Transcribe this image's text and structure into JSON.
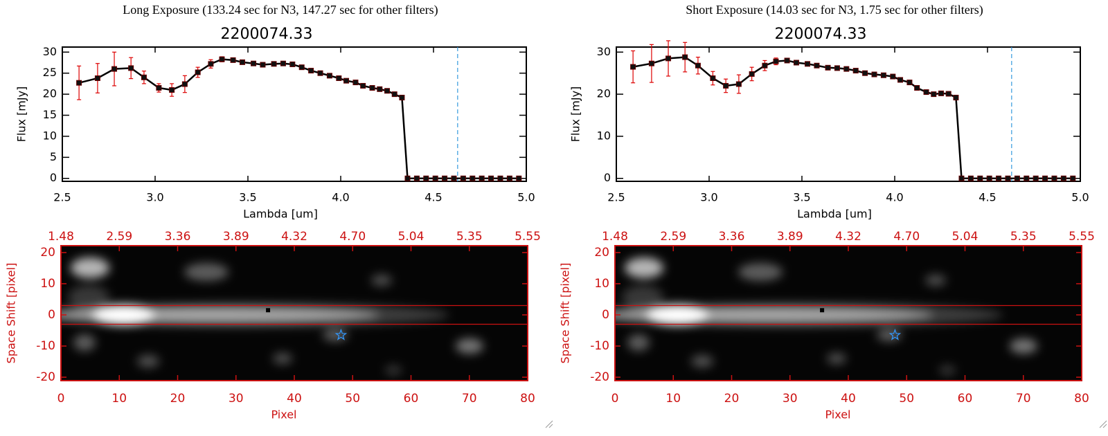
{
  "chart_data": [
    {
      "type": "line",
      "title": "Long Exposure (133.24 sec for N3, 147.27 sec for other filters)",
      "subtitle": "2200074.33",
      "xlabel": "Lambda [um]",
      "ylabel": "Flux [mJy]",
      "xlim": [
        2.5,
        5.0
      ],
      "ylim": [
        -0.7,
        31.2
      ],
      "xticks": [
        {
          "value": 2.5,
          "label": "2.5"
        },
        {
          "value": 3,
          "label": "3.0"
        },
        {
          "value": 3.5,
          "label": "3.5"
        },
        {
          "value": 4,
          "label": "4.0"
        },
        {
          "value": 4.5,
          "label": "4.5"
        },
        {
          "value": 5,
          "label": "5.0"
        }
      ],
      "yticks": [
        0,
        5,
        10,
        15,
        20,
        25,
        30
      ],
      "reference_x": 4.63,
      "x": [
        2.59,
        2.69,
        2.78,
        2.87,
        2.94,
        3.02,
        3.09,
        3.16,
        3.23,
        3.3,
        3.36,
        3.42,
        3.47,
        3.53,
        3.58,
        3.64,
        3.69,
        3.74,
        3.79,
        3.84,
        3.89,
        3.94,
        3.99,
        4.03,
        4.08,
        4.12,
        4.17,
        4.21,
        4.25,
        4.29,
        4.33,
        4.36,
        4.41,
        4.46,
        4.51,
        4.56,
        4.61,
        4.66,
        4.71,
        4.76,
        4.81,
        4.86,
        4.91,
        4.96
      ],
      "values": [
        22.7,
        23.8,
        26,
        26.2,
        24,
        21.5,
        21,
        22.4,
        25.2,
        27.2,
        28.3,
        28.1,
        27.6,
        27.3,
        27,
        27.2,
        27.3,
        27.1,
        26.4,
        25.6,
        25,
        24.4,
        23.8,
        23.2,
        22.8,
        22,
        21.5,
        21.2,
        20.8,
        20,
        19.2,
        0,
        0,
        0,
        0,
        0,
        0,
        0,
        0,
        0,
        0,
        0,
        0,
        0
      ],
      "errors": [
        4,
        3.5,
        4,
        2.5,
        1.5,
        1,
        1.5,
        2,
        1.2,
        1,
        0.6,
        0.4,
        0.3,
        0.3,
        0.3,
        0.3,
        0.3,
        0.3,
        0.3,
        0.3,
        0.3,
        0.3,
        0.3,
        0.3,
        0.3,
        0.3,
        0.3,
        0.3,
        0.3,
        0.3,
        0.4,
        0,
        0,
        0,
        0,
        0,
        0,
        0,
        0,
        0,
        0,
        0,
        0,
        0
      ],
      "color": "#000000",
      "error_color": "#dd0000"
    },
    {
      "type": "heatmap",
      "xlabel": "Pixel",
      "ylabel": "Space Shift [pixel]",
      "xlim": [
        0,
        80
      ],
      "ylim": [
        -21.1,
        22.2
      ],
      "xticks": [
        0,
        10,
        20,
        30,
        40,
        50,
        60,
        70,
        80
      ],
      "yticks": [
        -20,
        -10,
        0,
        10,
        20
      ],
      "x2ticks": [
        {
          "value": 0,
          "label": "1.48"
        },
        {
          "value": 10,
          "label": "2.59"
        },
        {
          "value": 20,
          "label": "3.36"
        },
        {
          "value": 30,
          "label": "3.89"
        },
        {
          "value": 40,
          "label": "4.32"
        },
        {
          "value": 50,
          "label": "4.70"
        },
        {
          "value": 60,
          "label": "5.04"
        },
        {
          "value": 70,
          "label": "5.35"
        },
        {
          "value": 80,
          "label": "5.55"
        }
      ],
      "aperture": [
        -3,
        3
      ],
      "source": {
        "x": 35.5,
        "y": 1.5
      },
      "marker": {
        "x": 48,
        "y": -6.5
      },
      "color": "#cc1111"
    },
    {
      "type": "line",
      "title": "Short Exposure (14.03 sec for N3, 1.75 sec for other filters)",
      "subtitle": "2200074.33",
      "xlabel": "Lambda [um]",
      "ylabel": "Flux [mJy]",
      "xlim": [
        2.5,
        5.0
      ],
      "ylim": [
        -0.7,
        31.2
      ],
      "xticks": [
        {
          "value": 2.5,
          "label": "2.5"
        },
        {
          "value": 3,
          "label": "3.0"
        },
        {
          "value": 3.5,
          "label": "3.5"
        },
        {
          "value": 4,
          "label": "4.0"
        },
        {
          "value": 4.5,
          "label": "4.5"
        },
        {
          "value": 5,
          "label": "5.0"
        }
      ],
      "yticks": [
        0,
        10,
        20,
        30
      ],
      "reference_x": 4.63,
      "x": [
        2.59,
        2.69,
        2.78,
        2.87,
        2.94,
        3.02,
        3.09,
        3.16,
        3.23,
        3.3,
        3.36,
        3.42,
        3.47,
        3.53,
        3.58,
        3.64,
        3.69,
        3.74,
        3.79,
        3.84,
        3.89,
        3.94,
        3.99,
        4.03,
        4.08,
        4.12,
        4.17,
        4.21,
        4.25,
        4.29,
        4.33,
        4.36,
        4.41,
        4.46,
        4.51,
        4.56,
        4.61,
        4.66,
        4.71,
        4.76,
        4.81,
        4.86,
        4.91,
        4.96
      ],
      "values": [
        26.5,
        27.3,
        28.5,
        28.8,
        26.8,
        23.8,
        22,
        22.4,
        24.8,
        26.8,
        27.8,
        28,
        27.5,
        27.2,
        26.8,
        26.3,
        26.2,
        26,
        25.6,
        25,
        24.7,
        24.5,
        24.2,
        23.4,
        22.8,
        21.5,
        20.5,
        20,
        20.2,
        20.1,
        19.2,
        0,
        0,
        0,
        0,
        0,
        0,
        0,
        0,
        0,
        0,
        0,
        0,
        0
      ],
      "errors": [
        3.8,
        4.5,
        4.2,
        3.5,
        2,
        1.6,
        1.6,
        2.2,
        1.6,
        1.2,
        0.8,
        0.5,
        0.4,
        0.3,
        0.3,
        0.3,
        0.3,
        0.3,
        0.3,
        0.3,
        0.3,
        0.3,
        0.3,
        0.3,
        0.3,
        0.3,
        0.3,
        0.3,
        0.3,
        0.3,
        0.5,
        0,
        0,
        0,
        0,
        0,
        0,
        0,
        0,
        0,
        0,
        0,
        0,
        0
      ],
      "color": "#000000",
      "error_color": "#dd0000"
    },
    {
      "type": "heatmap",
      "xlabel": "Pixel",
      "ylabel": "Space Shift [pixel]",
      "xlim": [
        0,
        80
      ],
      "ylim": [
        -21.1,
        22.2
      ],
      "xticks": [
        0,
        10,
        20,
        30,
        40,
        50,
        60,
        70,
        80
      ],
      "yticks": [
        -20,
        -10,
        0,
        10,
        20
      ],
      "x2ticks": [
        {
          "value": 0,
          "label": "1.48"
        },
        {
          "value": 10,
          "label": "2.59"
        },
        {
          "value": 20,
          "label": "3.36"
        },
        {
          "value": 30,
          "label": "3.89"
        },
        {
          "value": 40,
          "label": "4.32"
        },
        {
          "value": 50,
          "label": "4.70"
        },
        {
          "value": 60,
          "label": "5.04"
        },
        {
          "value": 70,
          "label": "5.35"
        },
        {
          "value": 80,
          "label": "5.55"
        }
      ],
      "aperture": [
        -3,
        3
      ],
      "source": {
        "x": 35.5,
        "y": 1.5
      },
      "marker": {
        "x": 48,
        "y": -6.5
      },
      "color": "#cc1111"
    }
  ]
}
